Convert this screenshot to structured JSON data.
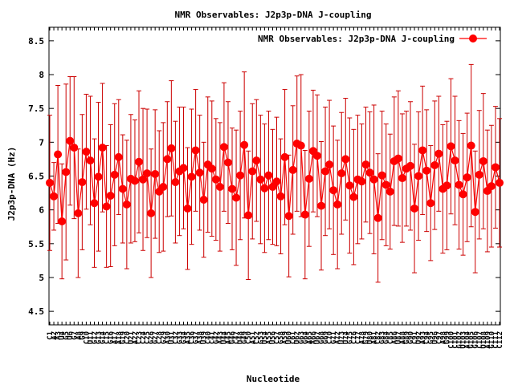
{
  "chart_data": {
    "type": "line",
    "title": "NMR Observables: J2p3p-DNA J-coupling",
    "xlabel": "Nucleotide",
    "ylabel": "J2p3p-DNA (Hz)",
    "ylim": [
      4.3,
      8.7
    ],
    "yticks": [
      "4.5",
      "5",
      "5.5",
      "6",
      "6.5",
      "7",
      "7.5",
      "8",
      "8.5"
    ],
    "ytick_values": [
      4.5,
      5,
      5.5,
      6,
      6.5,
      7,
      7.5,
      8,
      8.5
    ],
    "grid": false,
    "legend_position": "top-right",
    "series": [
      {
        "name": "NMR Observables: J2p3p-DNA J-coupling",
        "color": "#ff0000",
        "errorbar_color": "#cc0000",
        "y": [
          6.4,
          6.2,
          6.82,
          5.83,
          6.56,
          7.02,
          6.92,
          5.95,
          6.41,
          6.86,
          6.73,
          6.1,
          6.49,
          6.92,
          6.05,
          6.21,
          6.52,
          6.78,
          6.31,
          6.08,
          6.46,
          6.43,
          6.71,
          6.45,
          6.54,
          5.95,
          6.53,
          6.27,
          6.34,
          6.75,
          6.91,
          6.41,
          6.57,
          6.62,
          6.02,
          6.49,
          6.88,
          6.55,
          6.15,
          6.67,
          6.61,
          6.45,
          6.34,
          6.93,
          6.7,
          6.31,
          6.18,
          6.51,
          6.96,
          5.92,
          6.57,
          6.73,
          6.45,
          6.32,
          6.51,
          6.34,
          6.42,
          6.2,
          6.78,
          5.91,
          6.59,
          6.98,
          6.95,
          5.93,
          6.46,
          6.87,
          6.8,
          6.06,
          6.57,
          6.67,
          6.29,
          6.08,
          6.54,
          6.75,
          6.36,
          6.19,
          6.45,
          6.42,
          6.67,
          6.55,
          6.45,
          5.88,
          6.51,
          6.37,
          6.27,
          6.72,
          6.76,
          6.47,
          6.61,
          6.65,
          6.02,
          6.5,
          6.88,
          6.58,
          6.1,
          6.66,
          6.83,
          6.31,
          6.36,
          6.94,
          6.73,
          6.37,
          6.23,
          6.48,
          6.95,
          5.97,
          6.52,
          6.72,
          6.28,
          6.35,
          6.63,
          6.4
        ],
        "err": [
          1.0,
          0.5,
          1.02,
          0.85,
          1.3,
          0.95,
          1.05,
          0.95,
          1.0,
          0.85,
          0.95,
          0.95,
          1.1,
          0.95,
          0.9,
          1.05,
          1.05,
          0.85,
          0.8,
          0.95,
          0.95,
          0.9,
          1.05,
          1.05,
          0.95,
          0.95,
          0.95,
          0.9,
          0.95,
          0.85,
          1.0,
          0.9,
          0.95,
          0.9,
          0.9,
          1.0,
          0.9,
          0.85,
          0.85,
          1.0,
          1.0,
          0.9,
          0.95,
          0.95,
          0.9,
          0.9,
          1.0,
          0.95,
          1.08,
          0.95,
          1.0,
          0.9,
          0.95,
          0.95,
          0.95,
          0.85,
          0.95,
          0.85,
          1.0,
          0.9,
          0.95,
          1.0,
          1.05,
          0.95,
          1.0,
          0.9,
          0.9,
          0.95,
          0.95,
          0.95,
          0.95,
          0.95,
          0.9,
          0.9,
          1.0,
          1.0,
          0.95,
          0.85,
          0.85,
          0.9,
          1.1,
          0.95,
          0.95,
          0.9,
          0.85,
          0.95,
          1.0,
          0.95,
          0.85,
          0.95,
          0.95,
          0.95,
          0.95,
          0.9,
          0.85,
          0.95,
          0.85,
          0.95,
          0.95,
          1.0,
          0.95,
          0.95,
          0.9,
          0.95,
          1.2,
          0.9,
          0.95,
          1.0,
          0.9,
          0.9,
          0.9,
          0.95
        ]
      }
    ],
    "x_ticks": [
      "C1",
      "A2",
      "A3",
      "U4",
      "G5",
      "U6",
      "G7",
      "A8",
      "G9",
      "C10",
      "U11",
      "G12",
      "G13",
      "G14",
      "C15",
      "G16",
      "A17",
      "A18",
      "G19",
      "C20",
      "U21",
      "A22",
      "C23",
      "C24",
      "C25",
      "G26",
      "G27",
      "C28",
      "G29",
      "A30",
      "U31",
      "C32",
      "G33",
      "G34",
      "A35",
      "C36",
      "G37",
      "A38",
      "U39",
      "C40",
      "C41",
      "G42",
      "A43",
      "U44",
      "A45",
      "G46",
      "C47",
      "U48",
      "G49",
      "C50",
      "A51",
      "C52",
      "G53",
      "U54",
      "A55",
      "U56",
      "C57",
      "G58",
      "A59",
      "U60",
      "C61",
      "U62",
      "G63",
      "G64",
      "A65",
      "A66",
      "U67",
      "G68",
      "G69",
      "C70",
      "G71",
      "A72",
      "U73",
      "U74",
      "G75",
      "C76",
      "C77",
      "A78",
      "G79",
      "U80",
      "A81",
      "C82",
      "G83",
      "G84",
      "C85",
      "A86",
      "U87",
      "A88",
      "G89",
      "G90",
      "C91",
      "U92",
      "A93",
      "C94",
      "G95",
      "U96",
      "C97",
      "A98",
      "G99",
      "C100",
      "C101",
      "G102",
      "U103",
      "A104",
      "G105",
      "G106",
      "C107",
      "U108",
      "A109",
      "G110",
      "C111",
      "C112"
    ]
  }
}
